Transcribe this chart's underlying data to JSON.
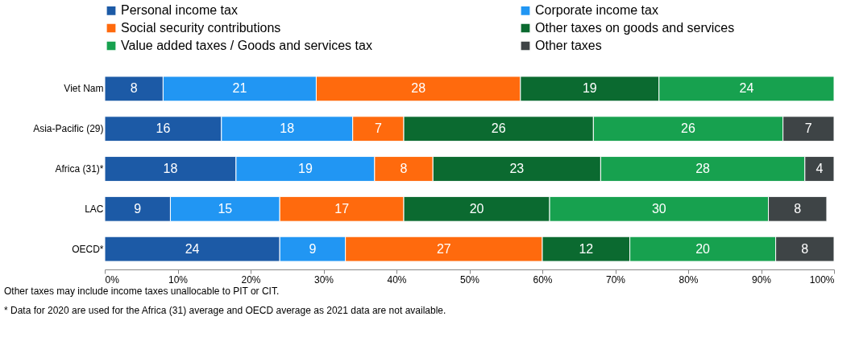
{
  "chart_data": {
    "type": "bar",
    "orientation": "horizontal",
    "stacked": true,
    "data_labels": true,
    "legend": "top",
    "grid": false,
    "categories": [
      "Viet Nam",
      "Asia-Pacific (29)",
      "Africa (31)*",
      "LAC",
      "OECD*"
    ],
    "series": [
      {
        "name": "Personal income tax",
        "color": "#1c5aa6",
        "values": [
          8,
          16,
          18,
          9,
          24
        ]
      },
      {
        "name": "Corporate income tax",
        "color": "#2196f3",
        "values": [
          21,
          18,
          19,
          15,
          9
        ]
      },
      {
        "name": "Social security contributions",
        "color": "#ff6a0d",
        "values": [
          28,
          7,
          8,
          17,
          27
        ]
      },
      {
        "name": "Other taxes on goods and services",
        "color": "#0b6a30",
        "values": [
          19,
          26,
          23,
          20,
          12
        ]
      },
      {
        "name": "Value added taxes / Goods and services tax",
        "color": "#17a14f",
        "values": [
          24,
          26,
          28,
          30,
          20
        ]
      },
      {
        "name": "Other taxes",
        "color": "#3e4446",
        "values": [
          null,
          7,
          4,
          8,
          8
        ]
      }
    ],
    "xlim": [
      0,
      100
    ],
    "xticks": [
      {
        "value": 0,
        "label": "0%"
      },
      {
        "value": 10,
        "label": "10%"
      },
      {
        "value": 20,
        "label": "20%"
      },
      {
        "value": 30,
        "label": "30%"
      },
      {
        "value": 40,
        "label": "40%"
      },
      {
        "value": 50,
        "label": "50%"
      },
      {
        "value": 60,
        "label": "60%"
      },
      {
        "value": 70,
        "label": "70%"
      },
      {
        "value": 80,
        "label": "80%"
      },
      {
        "value": 90,
        "label": "90%"
      },
      {
        "value": 100,
        "label": "100%"
      }
    ],
    "annotations": [
      "Other taxes may include income taxes unallocable to PIT or CIT.",
      "* Data for 2020 are used for the Africa (31) average and OECD average as 2021 data are not available."
    ]
  }
}
